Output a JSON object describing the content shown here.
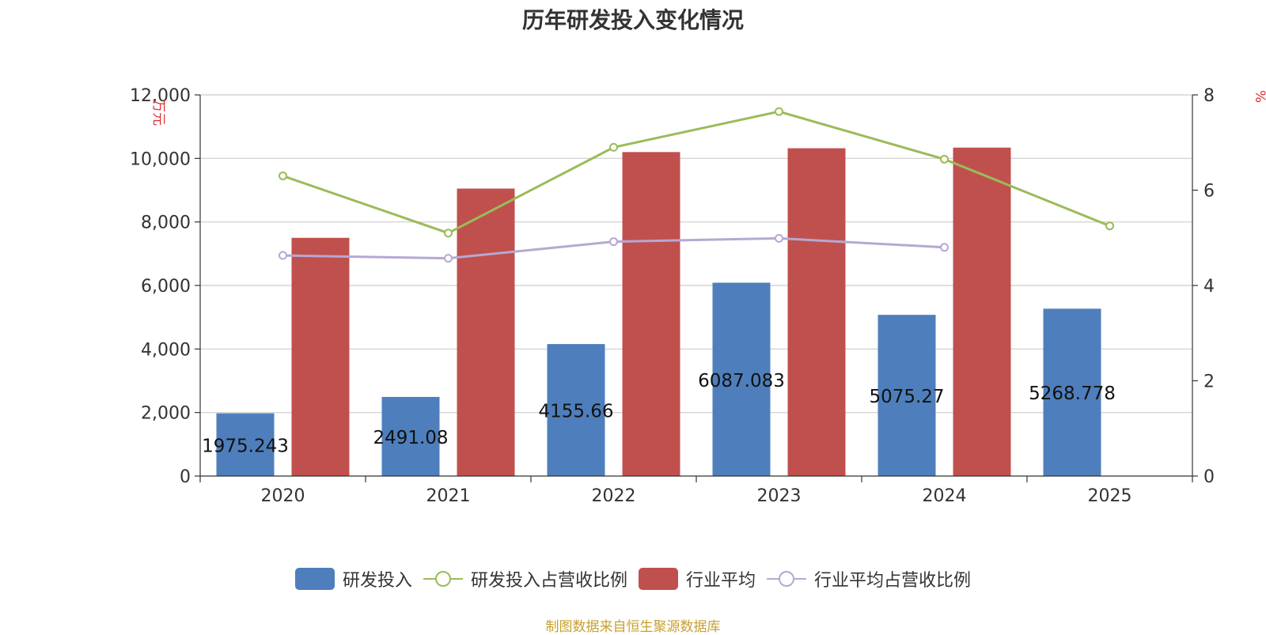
{
  "source_note": "制图数据来自恒生聚源数据库",
  "chart_data": {
    "type": "bar",
    "title": "历年研发投入变化情况",
    "categories": [
      "2020",
      "2021",
      "2022",
      "2023",
      "2024",
      "2025"
    ],
    "y_left": {
      "unit": "万元",
      "min": 0,
      "max": 12000,
      "ticks": [
        "0",
        "2,000",
        "4,000",
        "6,000",
        "8,000",
        "10,000",
        "12,000"
      ]
    },
    "y_right": {
      "unit": "%",
      "min": 0,
      "max": 8,
      "ticks": [
        "0",
        "2",
        "4",
        "6",
        "8"
      ]
    },
    "grid": true,
    "legend_position": "bottom",
    "series": [
      {
        "name": "研发投入",
        "kind": "bar",
        "axis": "left",
        "color": "#4e7fbc",
        "values": [
          1975.243,
          2491.08,
          4155.66,
          6087.083,
          5075.27,
          5268.778
        ],
        "labels": [
          "1975.243",
          "2491.08",
          "4155.66",
          "6087.083",
          "5075.27",
          "5268.778"
        ]
      },
      {
        "name": "研发投入占营收比例",
        "kind": "line",
        "axis": "right",
        "color": "#9bbb59",
        "values": [
          6.3,
          5.1,
          6.9,
          7.65,
          6.65,
          5.25
        ]
      },
      {
        "name": "行业平均",
        "kind": "bar",
        "axis": "left",
        "color": "#c0504d",
        "values": [
          7500,
          9050,
          10200,
          10320,
          10340,
          null
        ]
      },
      {
        "name": "行业平均占营收比例",
        "kind": "line",
        "axis": "right",
        "color": "#b6a8d2",
        "values": [
          4.63,
          4.57,
          4.92,
          4.99,
          4.8,
          null
        ]
      }
    ]
  }
}
